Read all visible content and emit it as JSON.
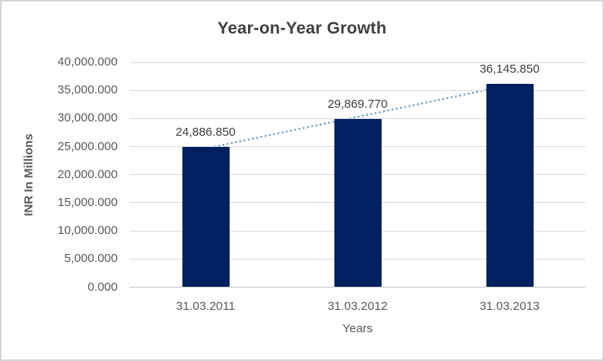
{
  "chart_data": {
    "type": "bar",
    "title": "Year-on-Year Growth",
    "categories": [
      "31.03.2011",
      "31.03.2012",
      "31.03.2013"
    ],
    "values": [
      24886.85,
      29869.77,
      36145.85
    ],
    "data_labels": [
      "24,886.850",
      "29,869.770",
      "36,145.850"
    ],
    "xlabel": "Years",
    "ylabel": "INR In Millions",
    "ylim": [
      0,
      40000
    ],
    "ytick_step": 5000,
    "ytick_labels": [
      "0.000",
      "5,000.000",
      "10,000.000",
      "15,000.000",
      "20,000.000",
      "25,000.000",
      "30,000.000",
      "35,000.000",
      "40,000.000"
    ],
    "grid": true,
    "legend": false,
    "trendline": {
      "type": "linear",
      "style": "dotted",
      "color": "#5b8fd4"
    },
    "colors": {
      "bar": "#002060",
      "title_text": "#404040",
      "axis_text": "#595959",
      "gridline": "#d9d9d9",
      "axis_line": "#c6c6c6",
      "chart_border": "#d6d6d6",
      "background": "#ffffff"
    }
  }
}
